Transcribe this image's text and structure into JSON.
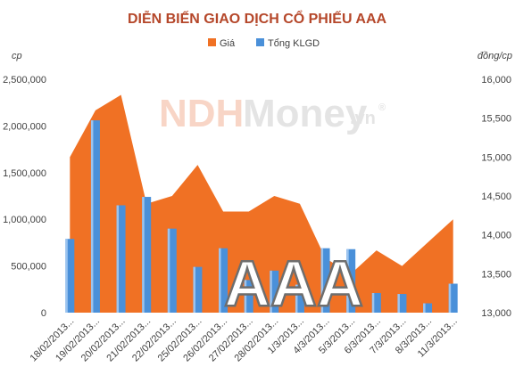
{
  "chart_data": {
    "type": "bar",
    "title": "DIỄN BIẾN GIAO DỊCH CỔ PHIẾU AAA",
    "categories": [
      "18/02/2013...",
      "19/02/2013...",
      "20/02/2013...",
      "21/02/2013...",
      "22/02/2013...",
      "25/02/2013...",
      "26/02/2013...",
      "27/02/2013...",
      "28/02/2013...",
      "1/3/2013...",
      "4/3/2013...",
      "5/3/2013...",
      "6/3/2013...",
      "7/3/2013...",
      "8/3/2013...",
      "11/3/2013..."
    ],
    "series": [
      {
        "name": "Giá",
        "type": "area",
        "axis": "right",
        "color": "#f07124",
        "values": [
          15000,
          15600,
          15800,
          14400,
          14500,
          14900,
          14300,
          14300,
          14500,
          14400,
          13700,
          13500,
          13800,
          13600,
          13900,
          14200
        ]
      },
      {
        "name": "Tổng KLGD",
        "type": "bar",
        "axis": "left",
        "color": "#4a90d9",
        "values": [
          790000,
          2060000,
          1150000,
          1240000,
          900000,
          490000,
          690000,
          350000,
          450000,
          300000,
          690000,
          680000,
          210000,
          200000,
          100000,
          310000
        ]
      }
    ],
    "y_left": {
      "unit": "cp",
      "ylim": [
        0,
        2500000
      ],
      "ticks": [
        "0",
        "500,000",
        "1,000,000",
        "1,500,000",
        "2,000,000",
        "2,500,000"
      ]
    },
    "y_right": {
      "unit": "đồng/cp",
      "ylim": [
        13000,
        16000
      ],
      "ticks": [
        "13,000",
        "13,500",
        "14,000",
        "14,500",
        "15,000",
        "15,500",
        "16,000"
      ]
    },
    "legend_position": "top-center",
    "grid": false
  },
  "watermark": {
    "left": "NDH",
    "right": "Money",
    "suffix": ".vn",
    "symbol": "®"
  },
  "overlay_code": "AAA"
}
